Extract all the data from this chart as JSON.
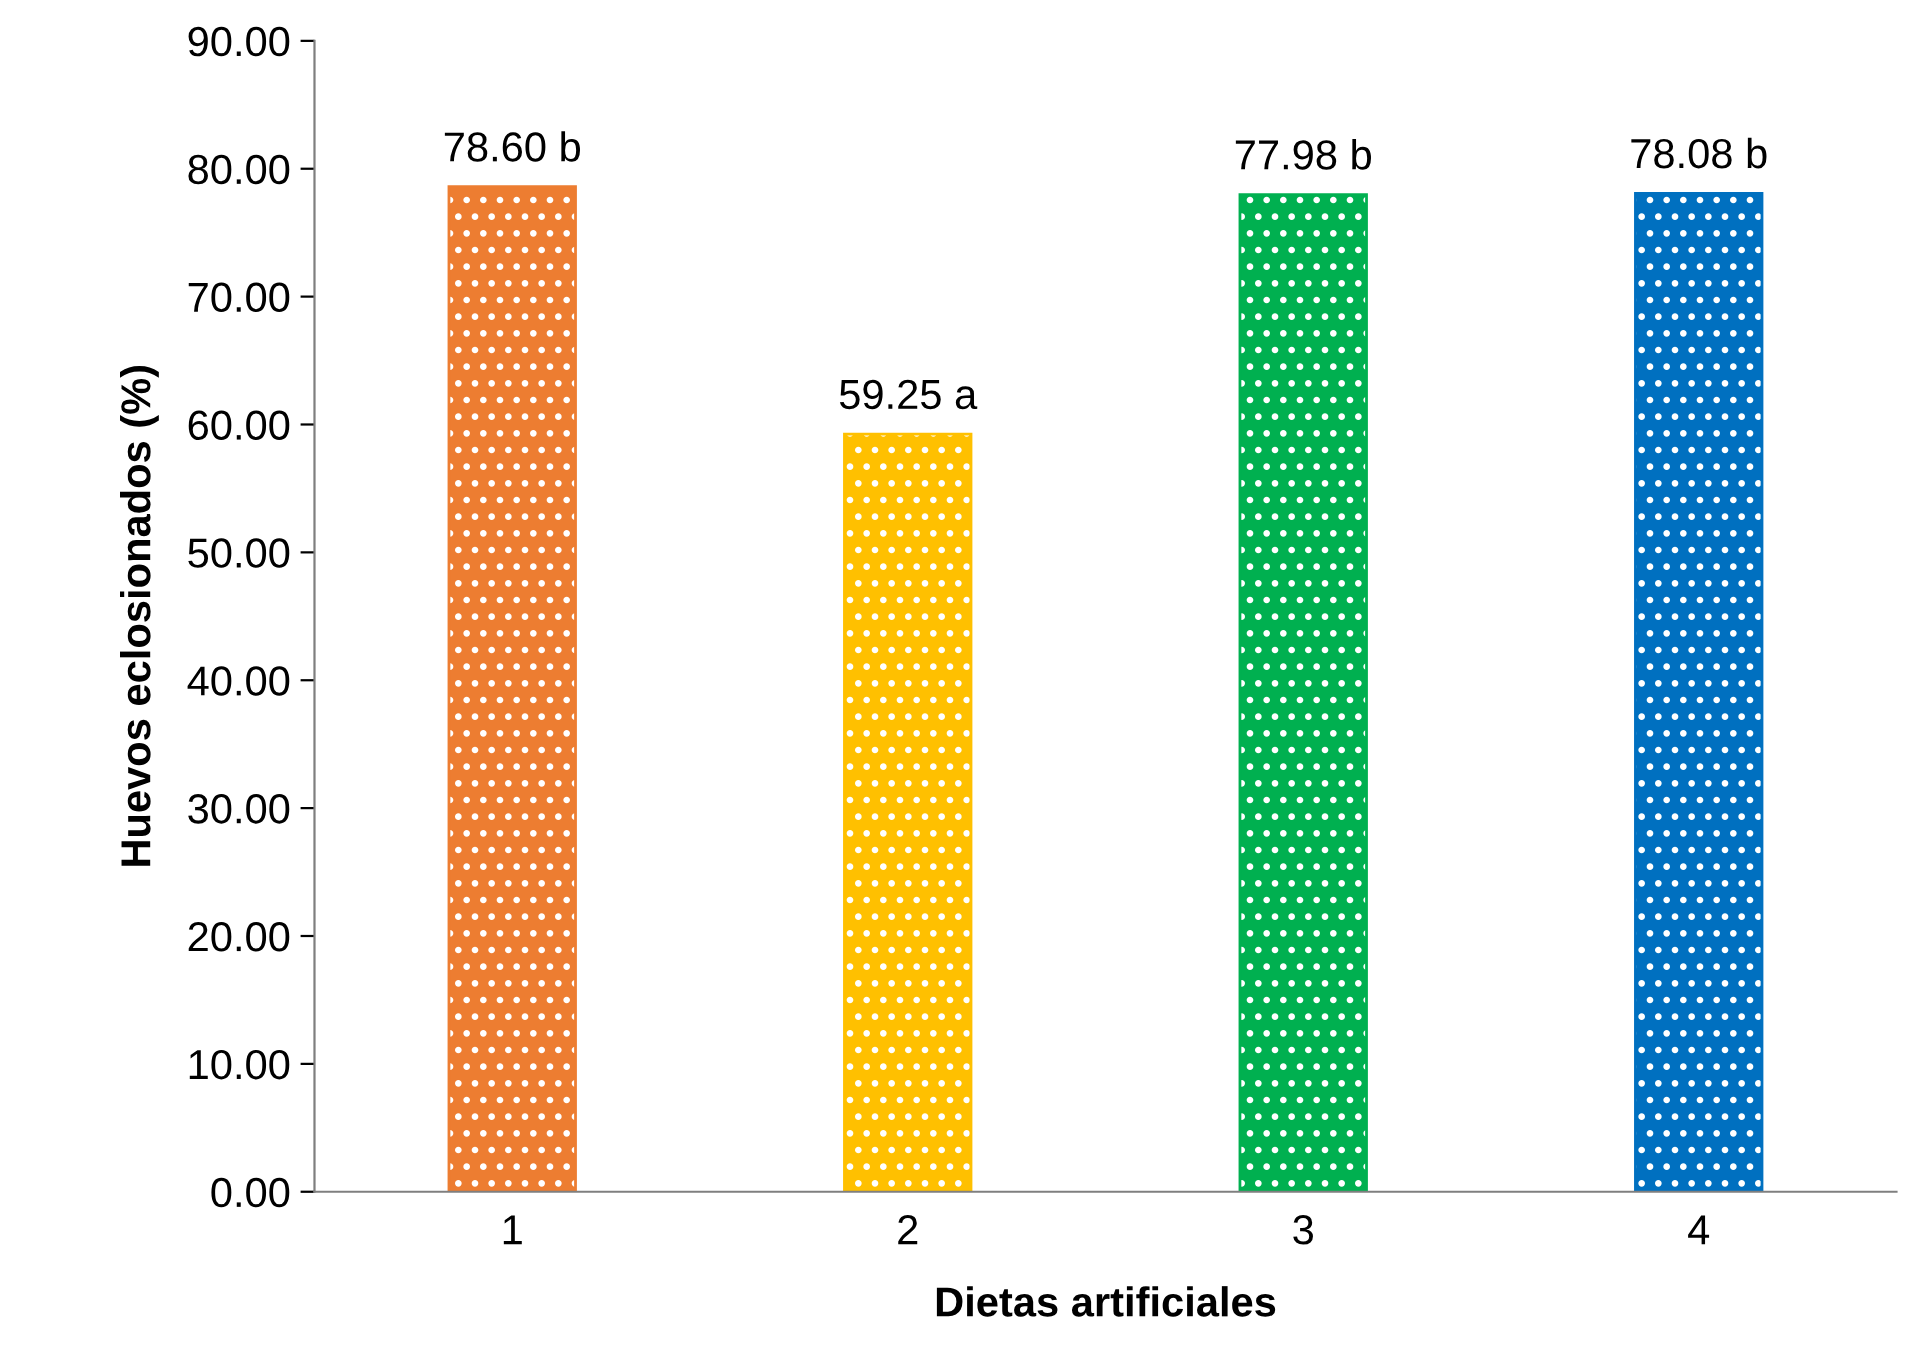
{
  "chart_data": {
    "type": "bar",
    "xlabel": "Dietas artificiales",
    "ylabel": "Huevos eclosionados (%)",
    "categories": [
      "1",
      "2",
      "3",
      "4"
    ],
    "values": [
      78.6,
      59.25,
      77.98,
      78.08
    ],
    "colors": [
      "#ed7d31",
      "#ffc000",
      "#00b050",
      "#0070c0"
    ],
    "value_labels": [
      "78.60 b",
      "59.25 a",
      "77.98 b",
      "78.08 b"
    ],
    "ylim": [
      0,
      90
    ],
    "yticks": [
      {
        "value": 0,
        "label": "0.00"
      },
      {
        "value": 10,
        "label": "10.00"
      },
      {
        "value": 20,
        "label": "20.00"
      },
      {
        "value": 30,
        "label": "30.00"
      },
      {
        "value": 40,
        "label": "40.00"
      },
      {
        "value": 50,
        "label": "50.00"
      },
      {
        "value": 60,
        "label": "60.00"
      },
      {
        "value": 70,
        "label": "70.00"
      },
      {
        "value": 80,
        "label": "80.00"
      },
      {
        "value": 90,
        "label": "90.00"
      }
    ],
    "grid": false,
    "legend": false
  }
}
